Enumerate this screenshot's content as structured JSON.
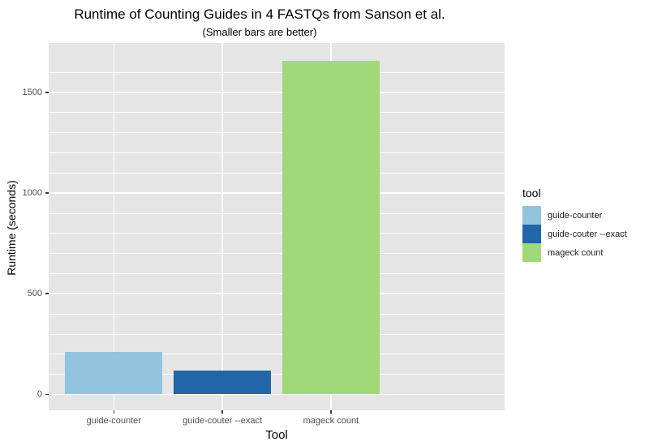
{
  "title": "Runtime of Counting Guides in 4 FASTQs from Sanson et al.",
  "subtitle": "(Smaller bars are better)",
  "chart_data": {
    "type": "bar",
    "title": "Runtime of Counting Guides in 4 FASTQs from Sanson et al.",
    "subtitle": "(Smaller bars are better)",
    "categories": [
      "guide-counter",
      "guide-couter --exact",
      "mageck count"
    ],
    "values": [
      210,
      118,
      1657
    ],
    "colors": [
      "#93c4de",
      "#2066a8",
      "#a0d977"
    ],
    "xlabel": "Tool",
    "ylabel": "Runtime (seconds)",
    "y_ticks": [
      0,
      500,
      1000,
      1500
    ],
    "y_tick_labels": [
      "0",
      "500",
      "1000",
      "1500"
    ],
    "ylim": [
      0,
      1746
    ],
    "minor_grid_step": 100,
    "major_grid_step": 500,
    "grid": true,
    "grid_color": "#ffffff",
    "panel_bg": "#e5e5e5",
    "legend_position": "right",
    "legend": {
      "title": "tool",
      "entries": [
        "guide-counter",
        "guide-couter --exact",
        "mageck count"
      ]
    }
  },
  "legend": {
    "title": "tool",
    "items": [
      {
        "label": "guide-counter",
        "color": "#93c4de"
      },
      {
        "label": "guide-couter --exact",
        "color": "#2066a8"
      },
      {
        "label": "mageck count",
        "color": "#a0d977"
      }
    ]
  }
}
